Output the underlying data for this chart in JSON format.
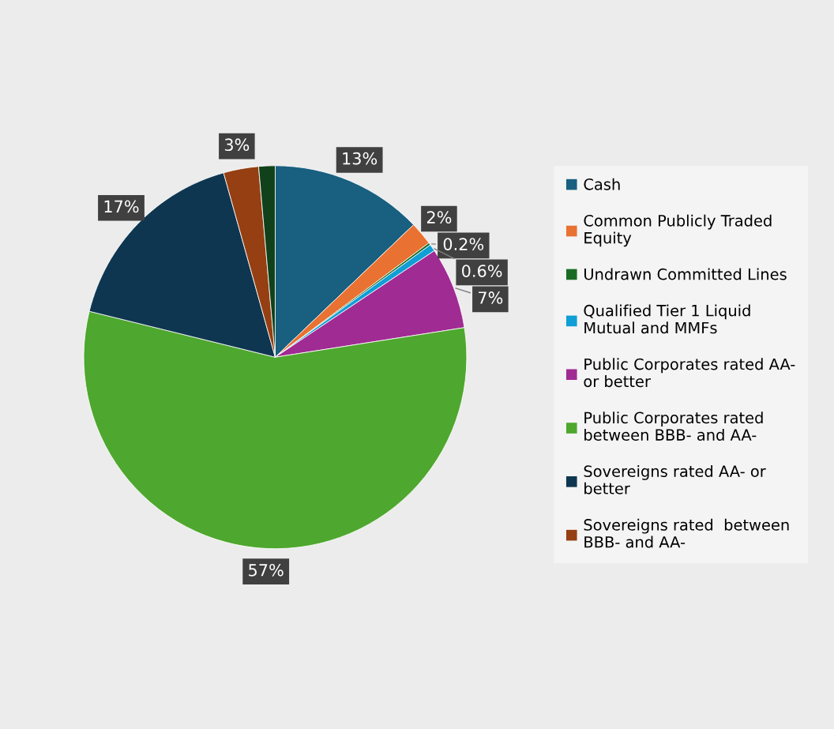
{
  "chart_data": {
    "type": "pie",
    "categories": [
      "Cash",
      "Common Publicly Traded Equity",
      "Undrawn Committed Lines",
      "Qualified Tier 1 Liquid Mutual and MMFs",
      "Public Corporates rated AA- or better",
      "Public Corporates rated between BBB- and AA-",
      "Sovereigns rated AA- or better",
      "Sovereigns rated  between BBB- and AA-",
      null
    ],
    "values": [
      13,
      2,
      0.2,
      0.6,
      7,
      57,
      17,
      3,
      1.4
    ],
    "value_labels": [
      "13%",
      "2%",
      "0.2%",
      "0.6%",
      "7%",
      "57%",
      "17%",
      "3%",
      null
    ],
    "colors": [
      "#185f80",
      "#e97131",
      "#196b24",
      "#0f9ed5",
      "#a02b93",
      "#4ea72e",
      "#0e3650",
      "#953f12",
      "#10411a"
    ],
    "legend": "right"
  }
}
